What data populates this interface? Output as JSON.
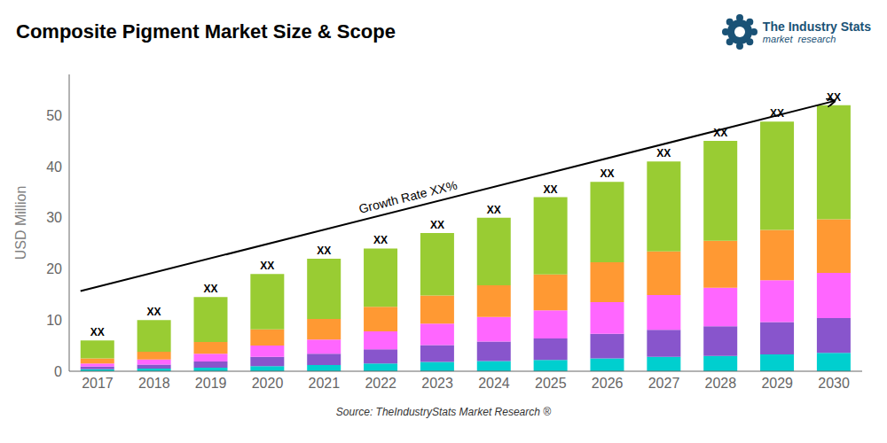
{
  "chart_data": {
    "type": "bar",
    "title": "Composite Pigment Market Size & Scope",
    "ylabel": "USD Million",
    "source": "Source: TheIndustryStats Market Research ®",
    "annotations": [
      "Growth Rate XX%",
      "The Industry Stats",
      "market  research"
    ],
    "categories": [
      "2017",
      "2018",
      "2019",
      "2020",
      "2021",
      "2022",
      "2023",
      "2024",
      "2025",
      "2026",
      "2027",
      "2028",
      "2029",
      "2030"
    ],
    "series": [
      {
        "color": "#00CFCF",
        "values": [
          0.4,
          0.5,
          0.7,
          1.0,
          1.2,
          1.5,
          1.8,
          2.0,
          2.2,
          2.5,
          2.8,
          3.0,
          3.3,
          3.6
        ]
      },
      {
        "color": "#8855CC",
        "values": [
          0.5,
          0.8,
          1.2,
          1.8,
          2.2,
          2.8,
          3.3,
          3.8,
          4.2,
          4.8,
          5.3,
          5.8,
          6.3,
          6.8
        ]
      },
      {
        "color": "#FF66FF",
        "values": [
          0.6,
          1.0,
          1.5,
          2.2,
          2.8,
          3.5,
          4.2,
          4.8,
          5.5,
          6.2,
          6.8,
          7.5,
          8.2,
          8.8
        ]
      },
      {
        "color": "#FF9933",
        "values": [
          1.0,
          1.5,
          2.3,
          3.2,
          4.0,
          4.8,
          5.5,
          6.2,
          7.0,
          7.8,
          8.5,
          9.2,
          9.8,
          10.5
        ]
      },
      {
        "color": "#99CC33",
        "values": [
          3.5,
          6.2,
          8.8,
          10.8,
          11.8,
          11.4,
          12.2,
          13.2,
          15.1,
          15.7,
          17.6,
          19.5,
          21.2,
          22.3
        ]
      }
    ],
    "total_labels": [
      "XX",
      "XX",
      "XX",
      "XX",
      "XX",
      "XX",
      "XX",
      "XX",
      "XX",
      "XX",
      "XX",
      "XX",
      "XX",
      "XX"
    ],
    "stacked": true,
    "grid": false,
    "ylim": [
      0,
      58
    ],
    "yticks": [
      0,
      10,
      20,
      30,
      40,
      50
    ]
  }
}
